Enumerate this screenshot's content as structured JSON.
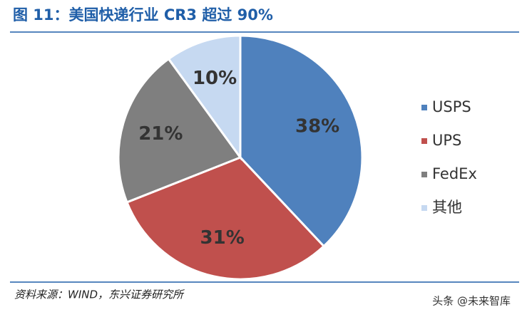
{
  "chart_data": {
    "type": "pie",
    "title": "图 11：美国快递行业 CR3 超过 90%",
    "categories": [
      "USPS",
      "UPS",
      "FedEx",
      "其他"
    ],
    "values": [
      38,
      31,
      21,
      10
    ],
    "value_labels": [
      "38%",
      "31%",
      "21%",
      "10%"
    ],
    "colors": [
      "#4f81bd",
      "#c0504d",
      "#7f7f7f",
      "#c6d9f1"
    ],
    "legend": "right"
  },
  "source": "资料来源：WIND，东兴证券研究所",
  "watermark": "头条 @未来智库"
}
